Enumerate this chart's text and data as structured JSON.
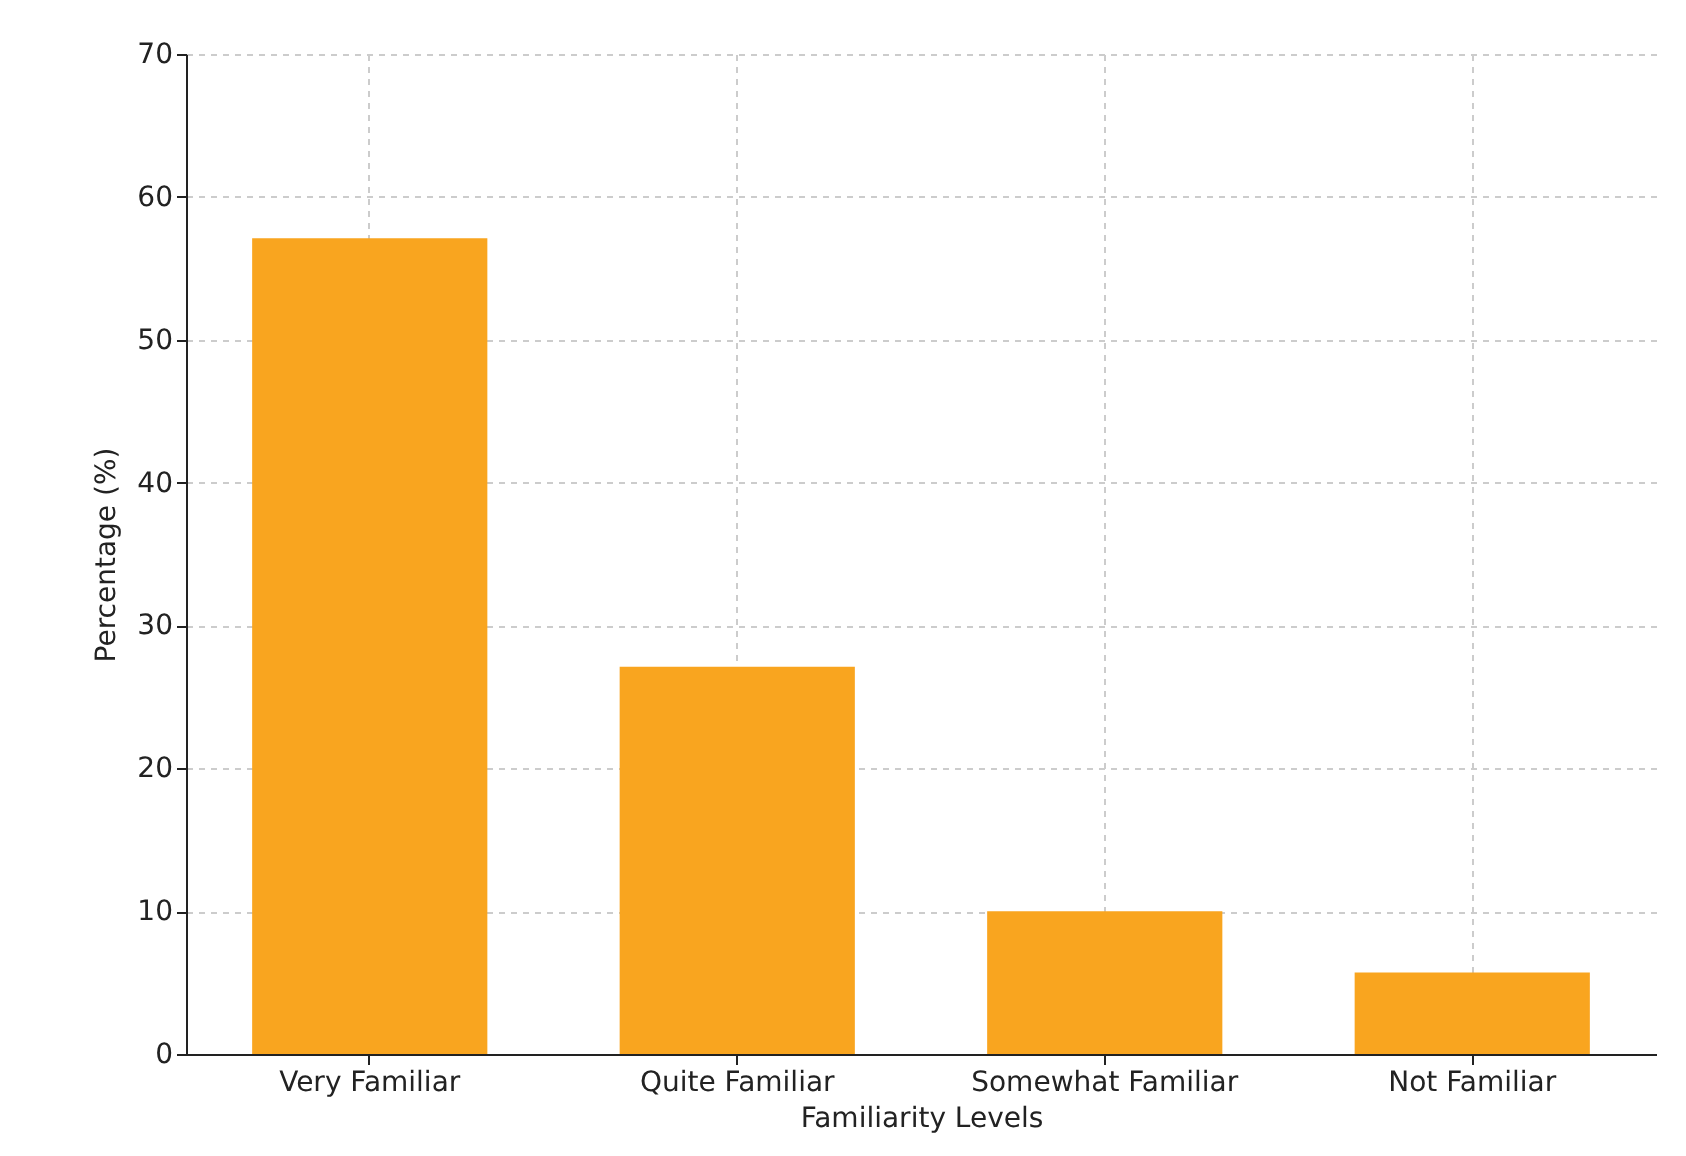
{
  "chart_data": {
    "type": "bar",
    "xlabel": "Familiarity Levels",
    "ylabel": "Percentage (%)",
    "categories": [
      "Very Familiar",
      "Quite Familiar",
      "Somewhat Familiar",
      "Not Familiar"
    ],
    "values": [
      57.1,
      27.1,
      10,
      5.7
    ],
    "color": "#f9a51f",
    "ylim": [
      0,
      70
    ],
    "yticks": [
      0,
      10,
      20,
      30,
      40,
      50,
      60,
      70
    ],
    "grid": true
  }
}
